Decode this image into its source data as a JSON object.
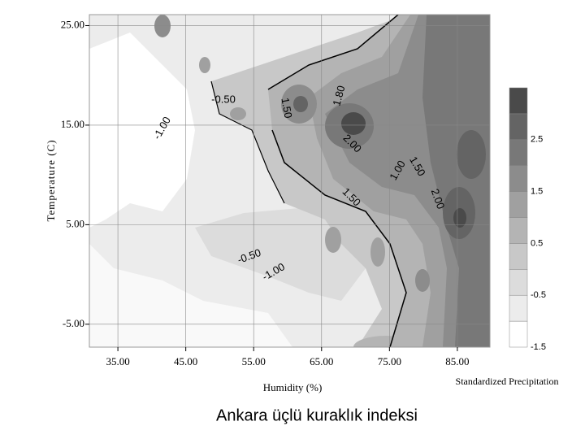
{
  "chart_data": {
    "type": "contour",
    "caption": "Ankara üçlü kuraklık indeksi",
    "x_label": "Humidity (%)",
    "y_label": "Temperature (C)",
    "xlim": [
      30.8,
      89.8
    ],
    "ylim": [
      -7.3,
      26.1
    ],
    "xticks": [
      {
        "value": 35,
        "label": "35.00"
      },
      {
        "value": 45,
        "label": "45.00"
      },
      {
        "value": 55,
        "label": "55.00"
      },
      {
        "value": 65,
        "label": "65.00"
      },
      {
        "value": 75,
        "label": "75.00"
      },
      {
        "value": 85,
        "label": "85.00"
      }
    ],
    "yticks": [
      {
        "value": 25,
        "label": "25.00"
      },
      {
        "value": 15,
        "label": "15.00"
      },
      {
        "value": 5,
        "label": "5.00"
      },
      {
        "value": -5,
        "label": "-5.00"
      }
    ],
    "grid": true,
    "contour_labels": [
      "-0.50",
      "-1.00",
      "1.50",
      "1.80",
      "2.00",
      "1.00",
      "1.50",
      "2.00",
      "1.50",
      "-0.50",
      "-1.00"
    ],
    "colorbar": {
      "title": "Standardized Precipitation",
      "lim": [
        -1.5,
        3.5
      ],
      "levels": [
        -1.5,
        -1,
        -0.5,
        0,
        0.5,
        1,
        1.5,
        2,
        2.5,
        3,
        3.5
      ],
      "colors": [
        "#ffffff",
        "#ececec",
        "#dcdcdc",
        "#c8c8c8",
        "#b4b4b4",
        "#a0a0a0",
        "#8c8c8c",
        "#787878",
        "#646464",
        "#4a4a4a"
      ],
      "ticks": [
        2.5,
        1.5,
        0.5,
        -0.5,
        -1.5
      ]
    }
  }
}
